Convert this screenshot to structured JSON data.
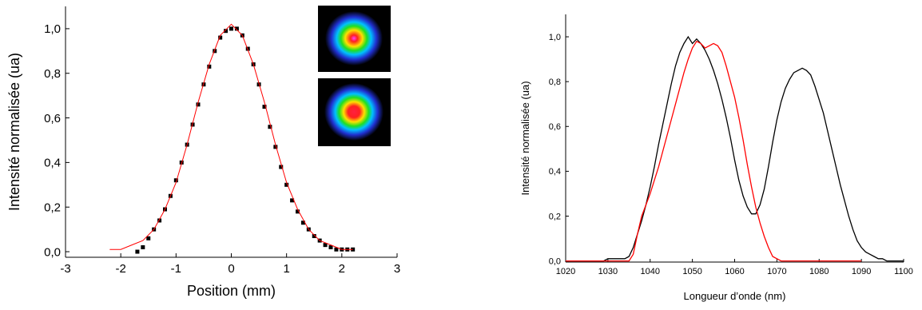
{
  "chart_data": [
    {
      "type": "scatter",
      "xlabel": "Position (mm)",
      "ylabel": "Intensité normalisée (ua)",
      "xlim": [
        -3,
        3
      ],
      "ylim": [
        -0.025,
        1.1
      ],
      "xticks": [
        -3,
        -2,
        -1,
        0,
        1,
        2,
        3
      ],
      "yticks": [
        {
          "value": 0,
          "label": "0,0"
        },
        {
          "value": 0.2,
          "label": "0,2"
        },
        {
          "value": 0.4,
          "label": "0,4"
        },
        {
          "value": 0.6,
          "label": "0,6"
        },
        {
          "value": 0.8,
          "label": "0,8"
        },
        {
          "value": 1.0,
          "label": "1,0"
        }
      ],
      "series": [
        {
          "mode": "markers",
          "color": "#000000",
          "x": [
            -1.7,
            -1.6,
            -1.5,
            -1.4,
            -1.3,
            -1.2,
            -1.1,
            -1.0,
            -0.9,
            -0.8,
            -0.7,
            -0.6,
            -0.5,
            -0.4,
            -0.3,
            -0.2,
            -0.1,
            0,
            0.1,
            0.2,
            0.3,
            0.4,
            0.5,
            0.6,
            0.7,
            0.8,
            0.9,
            1.0,
            1.1,
            1.2,
            1.3,
            1.4,
            1.5,
            1.6,
            1.7,
            1.8,
            1.9,
            2.0,
            2.1,
            2.2
          ],
          "values": [
            0,
            0.02,
            0.06,
            0.1,
            0.14,
            0.19,
            0.25,
            0.32,
            0.4,
            0.48,
            0.57,
            0.66,
            0.75,
            0.83,
            0.9,
            0.96,
            0.99,
            1.0,
            1.0,
            0.97,
            0.91,
            0.84,
            0.75,
            0.65,
            0.56,
            0.47,
            0.38,
            0.3,
            0.23,
            0.18,
            0.13,
            0.1,
            0.07,
            0.05,
            0.03,
            0.02,
            0.01,
            0.01,
            0.01,
            0.01
          ]
        },
        {
          "mode": "lines",
          "color": "#ff0000",
          "x": [
            -2.2,
            -2.0,
            -1.8,
            -1.6,
            -1.4,
            -1.2,
            -1.0,
            -0.8,
            -0.6,
            -0.4,
            -0.2,
            0,
            0.2,
            0.4,
            0.6,
            0.8,
            1.0,
            1.2,
            1.4,
            1.6,
            1.8,
            2.0,
            2.2
          ],
          "values": [
            0.01,
            0.01,
            0.03,
            0.05,
            0.1,
            0.19,
            0.31,
            0.48,
            0.67,
            0.84,
            0.97,
            1.02,
            0.97,
            0.84,
            0.67,
            0.48,
            0.31,
            0.19,
            0.1,
            0.05,
            0.03,
            0.01,
            0.01
          ]
        }
      ]
    },
    {
      "type": "line",
      "xlabel": "Longueur d’onde (nm)",
      "ylabel": "Intensité normalisée (ua)",
      "xlim": [
        1020,
        1100
      ],
      "ylim": [
        -0.005,
        1.1
      ],
      "xticks": [
        1020,
        1030,
        1040,
        1050,
        1060,
        1070,
        1080,
        1090,
        1100
      ],
      "yticks": [
        {
          "value": 0,
          "label": "0,0"
        },
        {
          "value": 0.2,
          "label": "0,2"
        },
        {
          "value": 0.4,
          "label": "0,4"
        },
        {
          "value": 0.6,
          "label": "0,6"
        },
        {
          "value": 0.8,
          "label": "0,8"
        },
        {
          "value": 1.0,
          "label": "1,0"
        }
      ],
      "x": [
        1020,
        1021,
        1022,
        1023,
        1024,
        1025,
        1026,
        1027,
        1028,
        1029,
        1030,
        1031,
        1032,
        1033,
        1034,
        1035,
        1036,
        1037,
        1038,
        1039,
        1040,
        1041,
        1042,
        1043,
        1044,
        1045,
        1046,
        1047,
        1048,
        1049,
        1050,
        1051,
        1052,
        1053,
        1054,
        1055,
        1056,
        1057,
        1058,
        1059,
        1060,
        1061,
        1062,
        1063,
        1064,
        1065,
        1066,
        1067,
        1068,
        1069,
        1070,
        1071,
        1072,
        1073,
        1074,
        1075,
        1076,
        1077,
        1078,
        1079,
        1080,
        1081,
        1082,
        1083,
        1084,
        1085,
        1086,
        1087,
        1088,
        1089,
        1090,
        1091,
        1092,
        1093,
        1094,
        1095,
        1096,
        1097,
        1098,
        1099,
        1100
      ],
      "series": [
        {
          "color": "#000000",
          "values": [
            0,
            0,
            0,
            0,
            0,
            0,
            0,
            0,
            0,
            0,
            0.01,
            0.01,
            0.01,
            0.01,
            0.01,
            0.02,
            0.06,
            0.12,
            0.18,
            0.25,
            0.33,
            0.42,
            0.52,
            0.61,
            0.7,
            0.79,
            0.87,
            0.93,
            0.97,
            1.0,
            0.97,
            0.99,
            0.97,
            0.94,
            0.9,
            0.85,
            0.79,
            0.72,
            0.64,
            0.55,
            0.45,
            0.36,
            0.29,
            0.24,
            0.21,
            0.21,
            0.25,
            0.32,
            0.42,
            0.53,
            0.63,
            0.71,
            0.77,
            0.81,
            0.84,
            0.85,
            0.86,
            0.85,
            0.83,
            0.78,
            0.72,
            0.66,
            0.58,
            0.5,
            0.42,
            0.34,
            0.27,
            0.2,
            0.14,
            0.09,
            0.06,
            0.04,
            0.03,
            0.02,
            0.01,
            0.01,
            0,
            0,
            0,
            0,
            0
          ]
        },
        {
          "color": "#ff0000",
          "values": [
            0,
            0,
            0,
            0,
            0,
            0,
            0,
            0,
            0,
            0,
            0,
            0,
            0,
            0,
            0,
            0,
            0.03,
            0.12,
            0.2,
            0.25,
            0.3,
            0.36,
            0.42,
            0.49,
            0.56,
            0.63,
            0.7,
            0.77,
            0.84,
            0.9,
            0.95,
            0.98,
            0.97,
            0.95,
            0.96,
            0.97,
            0.96,
            0.93,
            0.87,
            0.8,
            0.73,
            0.64,
            0.54,
            0.43,
            0.33,
            0.24,
            0.17,
            0.11,
            0.06,
            0.02,
            0.01,
            0,
            0,
            0,
            0,
            0,
            0,
            0,
            0,
            0,
            0,
            0,
            0,
            0,
            0,
            0,
            0,
            0,
            0,
            0,
            0,
            null,
            null,
            null,
            null,
            null,
            null,
            null,
            null,
            null,
            null
          ]
        }
      ]
    }
  ]
}
